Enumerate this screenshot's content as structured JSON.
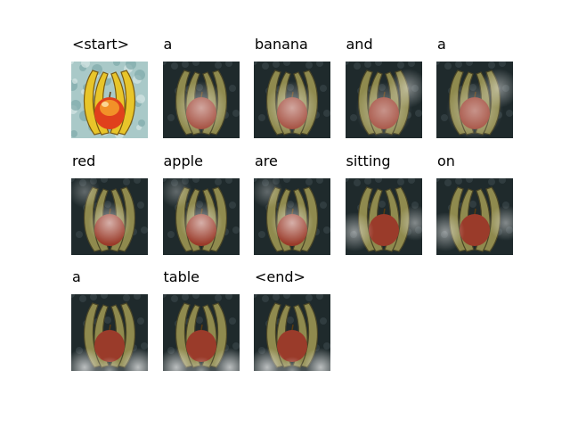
{
  "figure": {
    "tokens": [
      {
        "word": "<start>",
        "attention": "original"
      },
      {
        "word": "a",
        "attention": "diffuse-center"
      },
      {
        "word": "banana",
        "attention": "diffuse-center"
      },
      {
        "word": "and",
        "attention": "diffuse-edges"
      },
      {
        "word": "a",
        "attention": "diffuse-edges"
      },
      {
        "word": "red",
        "attention": "center-bright"
      },
      {
        "word": "apple",
        "attention": "center-bright"
      },
      {
        "word": "are",
        "attention": "center-bright"
      },
      {
        "word": "sitting",
        "attention": "lower-sides"
      },
      {
        "word": "on",
        "attention": "lower-sides"
      },
      {
        "word": "a",
        "attention": "bottom"
      },
      {
        "word": "table",
        "attention": "bottom"
      },
      {
        "word": "<end>",
        "attention": "bottom"
      }
    ]
  }
}
